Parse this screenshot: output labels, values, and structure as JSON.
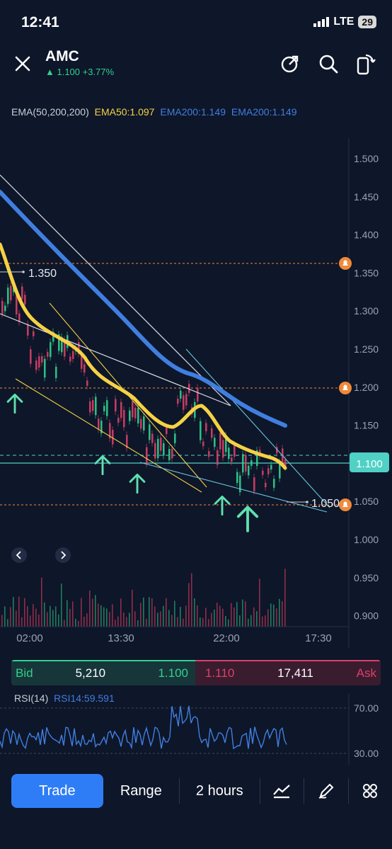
{
  "status": {
    "time": "12:41",
    "network": "LTE",
    "battery": "29"
  },
  "header": {
    "symbol": "AMC",
    "price_change": "▲ 1.100 +3.77%"
  },
  "ema_legend": {
    "name": "EMA(50,200,200)",
    "ema50": "EMA50:1.097",
    "ema200a": "EMA200:1.149",
    "ema200b": "EMA200:1.149"
  },
  "price_axis": [
    "1.500",
    "1.450",
    "1.400",
    "1.350",
    "1.300",
    "1.250",
    "1.200",
    "1.150",
    "1.100",
    "1.050",
    "1.000",
    "0.950",
    "0.900"
  ],
  "current_price": "1.100",
  "level_labels": {
    "high": "1.350",
    "low": "1.050"
  },
  "time_axis": [
    "02:00",
    "13:30",
    "22:00",
    "17:30"
  ],
  "bidask": {
    "bid_label": "Bid",
    "bid_size": "5,210",
    "bid_price": "1.100",
    "ask_price": "1.110",
    "ask_size": "17,411",
    "ask_label": "Ask"
  },
  "rsi": {
    "name": "RSI(14)",
    "value": "RSI14:59.591",
    "axis": [
      "70.00",
      "30.00"
    ]
  },
  "toolbar": {
    "trade": "Trade",
    "range": "Range",
    "interval": "2 hours"
  },
  "colors": {
    "bg": "#0e1629",
    "green": "#2fd18e",
    "red": "#d9416a",
    "ema50": "#f5d245",
    "ema200": "#3f7fe0",
    "accent": "#2f7df6",
    "alert": "#f08a3a"
  }
}
